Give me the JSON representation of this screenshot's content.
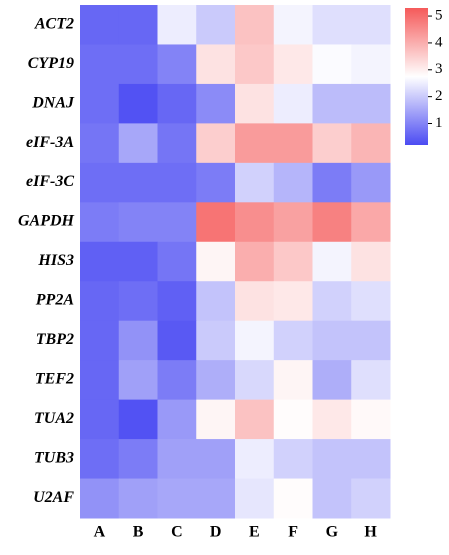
{
  "chart_data": {
    "type": "heatmap",
    "x": [
      "A",
      "B",
      "C",
      "D",
      "E",
      "F",
      "G",
      "H"
    ],
    "y": [
      "ACT2",
      "CYP19",
      "DNAJ",
      "eIF-3A",
      "eIF-3C",
      "GAPDH",
      "HIS3",
      "PP2A",
      "TBP2",
      "TEF2",
      "TUA2",
      "TUB3",
      "U2AF"
    ],
    "z": [
      [
        0.6,
        0.6,
        2.5,
        2.0,
        3.7,
        2.6,
        2.3,
        2.3
      ],
      [
        0.7,
        0.7,
        1.0,
        3.2,
        3.6,
        3.1,
        2.7,
        2.6
      ],
      [
        0.7,
        0.3,
        0.6,
        1.1,
        3.2,
        2.5,
        1.8,
        1.8
      ],
      [
        0.8,
        1.5,
        0.8,
        3.5,
        4.3,
        4.3,
        3.5,
        3.9
      ],
      [
        0.7,
        0.7,
        0.7,
        0.9,
        2.1,
        1.7,
        0.9,
        1.3
      ],
      [
        0.9,
        1.0,
        1.0,
        4.9,
        4.5,
        4.2,
        4.7,
        4.1
      ],
      [
        0.5,
        0.5,
        0.8,
        2.9,
        4.0,
        3.6,
        2.6,
        3.2
      ],
      [
        0.6,
        0.7,
        0.5,
        1.9,
        3.2,
        3.1,
        2.1,
        2.3
      ],
      [
        0.6,
        1.2,
        0.4,
        2.0,
        2.6,
        2.1,
        1.9,
        1.9
      ],
      [
        0.6,
        1.4,
        0.9,
        1.6,
        2.2,
        2.9,
        1.6,
        2.3
      ],
      [
        0.6,
        0.3,
        1.3,
        2.9,
        3.7,
        2.8,
        3.1,
        2.85
      ],
      [
        0.7,
        0.9,
        1.4,
        1.4,
        2.5,
        2.1,
        1.9,
        1.9
      ],
      [
        1.2,
        1.4,
        1.5,
        1.5,
        2.4,
        2.8,
        1.9,
        2.1
      ]
    ],
    "zlim": [
      0.2,
      5.3
    ],
    "zticks": [
      1,
      2,
      3,
      4,
      5
    ],
    "colorscale": [
      "#4b4bf2",
      "#ffffff",
      "#f55a5a"
    ]
  }
}
